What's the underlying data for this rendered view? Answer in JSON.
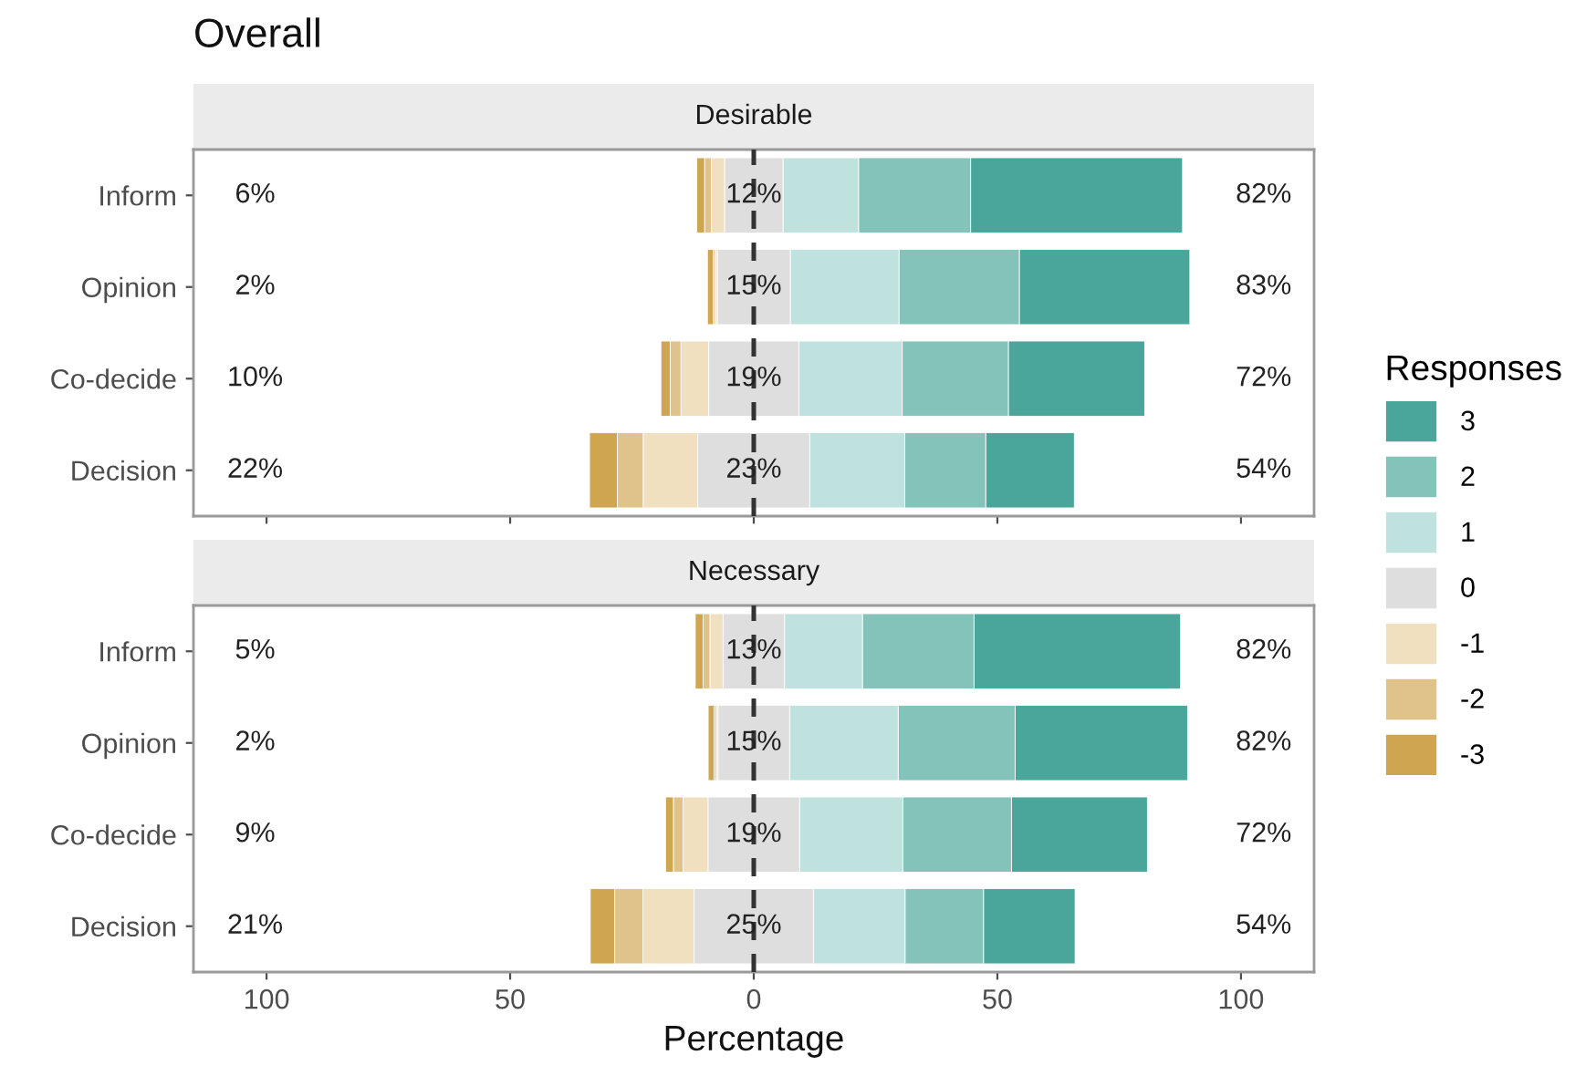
{
  "chart_data": [
    {
      "type": "bar",
      "title": "Overall",
      "subtitle": "Desirable",
      "orientation": "horizontal",
      "legend": "right",
      "legend_title": "Responses",
      "tick_labels": "y",
      "categories": [
        "Inform",
        "Opinion",
        "Co-decide",
        "Decision"
      ],
      "xlim": [
        -115,
        115
      ],
      "xticks": [
        {
          "value": -100,
          "label": null
        },
        {
          "value": -50,
          "label": null
        },
        {
          "value": 0,
          "label": null
        },
        {
          "value": 50,
          "label": null
        },
        {
          "value": 100,
          "label": null
        }
      ],
      "ref_lines": [
        {
          "axis": "x",
          "value": 0,
          "color": "#333333",
          "line_style": "dashed"
        }
      ],
      "series": [
        {
          "name": "3",
          "color": "#4aa69b",
          "values": [
            43.5,
            35,
            28,
            18.2
          ],
          "base": [
            44.5,
            54.5,
            52.25,
            47.6
          ]
        },
        {
          "name": "2",
          "color": "#83c3b9",
          "values": [
            23,
            24.7,
            21.8,
            16.6
          ],
          "base": [
            21.5,
            29.8,
            30.45,
            31
          ]
        },
        {
          "name": "1",
          "color": "#bfe2de",
          "values": [
            15.5,
            22.3,
            21.2,
            19.5
          ],
          "base": [
            6,
            7.5,
            9.25,
            11.5
          ]
        },
        {
          "name": "0",
          "color": "#dedede",
          "values": [
            12,
            15,
            18.5,
            23
          ],
          "base": [
            -6,
            -7.5,
            -9.25,
            -11.5
          ],
          "value_labels": [
            "12%",
            "15%",
            "19%",
            "23%"
          ]
        },
        {
          "name": "-1",
          "color": "#f0e0bf",
          "values": [
            2.7,
            0.4,
            5.7,
            11.2
          ],
          "base": [
            -8.7,
            -7.9,
            -14.95,
            -22.7
          ]
        },
        {
          "name": "-2",
          "color": "#e0c38a",
          "values": [
            1.4,
            0.4,
            2.2,
            5.3
          ],
          "base": [
            -10.1,
            -8.3,
            -17.15,
            -28
          ]
        },
        {
          "name": "-3",
          "color": "#cfa54f",
          "values": [
            1.6,
            1.2,
            1.9,
            5.7
          ],
          "base": [
            -11.7,
            -9.5,
            -19.05,
            -33.7
          ]
        }
      ],
      "annotations": [
        "6%",
        "2%",
        "10%",
        "22%",
        "82%",
        "83%",
        "72%",
        "54%"
      ]
    },
    {
      "type": "bar",
      "subtitle": "Necessary",
      "orientation": "horizontal",
      "xlabel": "Percentage",
      "categories": [
        "Inform",
        "Opinion",
        "Co-decide",
        "Decision"
      ],
      "xlim": [
        -115,
        115
      ],
      "xticks": [
        {
          "value": -100,
          "label": "100"
        },
        {
          "value": -50,
          "label": "50"
        },
        0,
        50,
        100
      ],
      "ref_lines": [
        {
          "axis": "x",
          "value": 0,
          "color": "#333333",
          "line_style": "dashed"
        }
      ],
      "series": [
        {
          "color": "#4aa69b",
          "values": [
            42.4,
            35.4,
            27.9,
            18.8
          ],
          "base": [
            45.2,
            53.65,
            52.9,
            47.15
          ]
        },
        {
          "color": "#83c3b9",
          "values": [
            22.9,
            24,
            22.3,
            16.1
          ],
          "base": [
            22.3,
            29.65,
            30.6,
            31.05
          ]
        },
        {
          "color": "#bfe2de",
          "values": [
            16,
            22.3,
            21.2,
            18.8
          ],
          "base": [
            6.3,
            7.35,
            9.4,
            12.25
          ]
        },
        {
          "color": "#dedede",
          "values": [
            12.6,
            14.7,
            18.8,
            24.5
          ],
          "base": [
            -6.3,
            -7.35,
            -9.4,
            -12.25
          ],
          "value_labels": [
            "13%",
            "15%",
            "19%",
            "25%"
          ]
        },
        {
          "color": "#f0e0bf",
          "values": [
            2.7,
            0.4,
            5.1,
            10.5
          ],
          "base": [
            -9,
            -7.75,
            -14.5,
            -22.75
          ]
        },
        {
          "color": "#e0c38a",
          "values": [
            1.4,
            0.4,
            2.0,
            5.8
          ],
          "base": [
            -10.4,
            -8.15,
            -16.5,
            -28.55
          ]
        },
        {
          "color": "#cfa54f",
          "values": [
            1.6,
            1.2,
            1.6,
            5.0
          ],
          "base": [
            -12,
            -9.35,
            -18.1,
            -33.55
          ]
        }
      ],
      "annotations": [
        "5%",
        "2%",
        "9%",
        "21%",
        "82%",
        "82%",
        "72%",
        "54%"
      ]
    }
  ]
}
